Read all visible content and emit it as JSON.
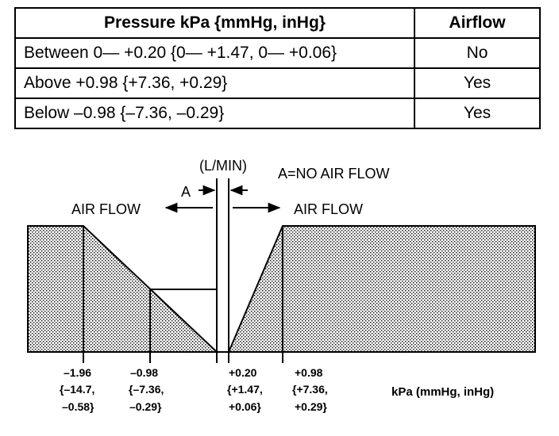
{
  "table": {
    "headers": [
      "Pressure kPa {mmHg, inHg}",
      "Airflow"
    ],
    "rows": [
      {
        "pressure": "Between 0— +0.20 {0— +1.47, 0— +0.06}",
        "airflow": "No"
      },
      {
        "pressure": "Above +0.98 {+7.36, +0.29}",
        "airflow": "Yes"
      },
      {
        "pressure": "Below –0.98 {–7.36, –0.29}",
        "airflow": "Yes"
      }
    ]
  },
  "diagram": {
    "y_unit_label": "(L/MIN)",
    "zone_label": "A",
    "zone_note": "A=NO AIR FLOW",
    "left_flow_label": "AIR FLOW",
    "right_flow_label": "AIR FLOW",
    "x_unit_label": "kPa (mmHg, inHg)",
    "ticks": [
      {
        "line1": "–1.96",
        "line2": "{–14.7,",
        "line3": "–0.58}"
      },
      {
        "line1": "–0.98",
        "line2": "{–7.36,",
        "line3": "–0.29}"
      },
      {
        "line1": "+0.20",
        "line2": "{+1.47,",
        "line3": "+0.06}"
      },
      {
        "line1": "+0.98",
        "line2": "{+7.36,",
        "line3": "+0.29}"
      }
    ]
  }
}
